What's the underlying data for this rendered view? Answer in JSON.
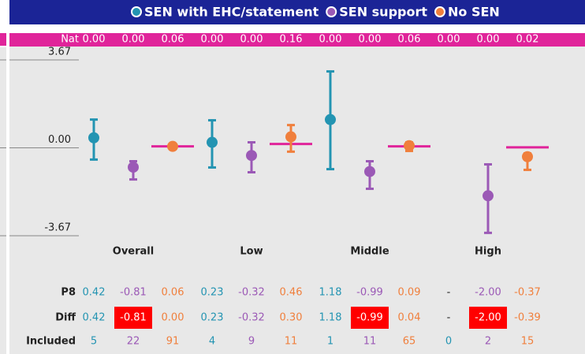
{
  "chart_data": {
    "type": "errorbar",
    "categories": [
      "Overall",
      "Low",
      "Middle",
      "High"
    ],
    "series": [
      {
        "name": "SEN with EHC/statement",
        "color": "#2394b2",
        "values": [
          0.42,
          0.23,
          1.18,
          null
        ],
        "value_labels": [
          "0.42",
          "0.23",
          "1.18",
          "-"
        ],
        "low": [
          -0.49,
          -0.82,
          -0.89,
          null
        ],
        "high": [
          1.18,
          1.15,
          3.19,
          null
        ],
        "diff": [
          0.42,
          0.23,
          1.18,
          null
        ],
        "diff_labels": [
          "0.42",
          "0.23",
          "1.18",
          "-"
        ],
        "significant": [
          false,
          false,
          false,
          false
        ],
        "included": [
          5,
          4,
          1,
          0
        ]
      },
      {
        "name": "SEN support",
        "color": "#9b59b6",
        "values": [
          -0.81,
          -0.32,
          -0.99,
          -2.0
        ],
        "value_labels": [
          "-0.81",
          "-0.32",
          "-0.99",
          "-2.00"
        ],
        "low": [
          -1.32,
          -1.02,
          -1.71,
          -3.55
        ],
        "high": [
          -0.56,
          0.23,
          -0.56,
          -0.69
        ],
        "diff": [
          -0.81,
          -0.32,
          -0.99,
          -2.0
        ],
        "diff_labels": [
          "-0.81",
          "-0.32",
          "-0.99",
          "-2.00"
        ],
        "significant": [
          true,
          false,
          true,
          true
        ],
        "included": [
          22,
          9,
          11,
          2
        ]
      },
      {
        "name": "No SEN",
        "color": "#f07f3c",
        "values": [
          0.06,
          0.46,
          0.09,
          -0.37
        ],
        "value_labels": [
          "0.06",
          "0.46",
          "0.09",
          "-0.37"
        ],
        "low": [
          -0.05,
          -0.16,
          -0.13,
          -0.92
        ],
        "high": [
          0.17,
          0.95,
          0.23,
          -0.23
        ],
        "diff": [
          0.0,
          0.3,
          0.04,
          -0.39
        ],
        "diff_labels": [
          "0.00",
          "0.30",
          "0.04",
          "-0.39"
        ],
        "significant": [
          false,
          false,
          false,
          false
        ],
        "included": [
          91,
          11,
          65,
          15
        ]
      }
    ],
    "nat_label": "Nat",
    "nat": [
      0,
      0,
      0.06,
      0,
      0,
      0.16,
      0,
      0,
      0.06,
      0,
      0,
      0.02
    ],
    "nat_labels": [
      "0.00",
      "0.00",
      "0.06",
      "0.00",
      "0.00",
      "0.16",
      "0.00",
      "0.00",
      "0.06",
      "0.00",
      "0.00",
      "0.02"
    ],
    "nat_line_color": "#e0249a",
    "row_labels": {
      "p8": "P8",
      "diff": "Diff",
      "included": "Included"
    },
    "ylim": [
      -3.67,
      3.67
    ],
    "yticks": [
      3.67,
      {
        "value": 0,
        "label": "0.00"
      },
      -3.67
    ]
  }
}
